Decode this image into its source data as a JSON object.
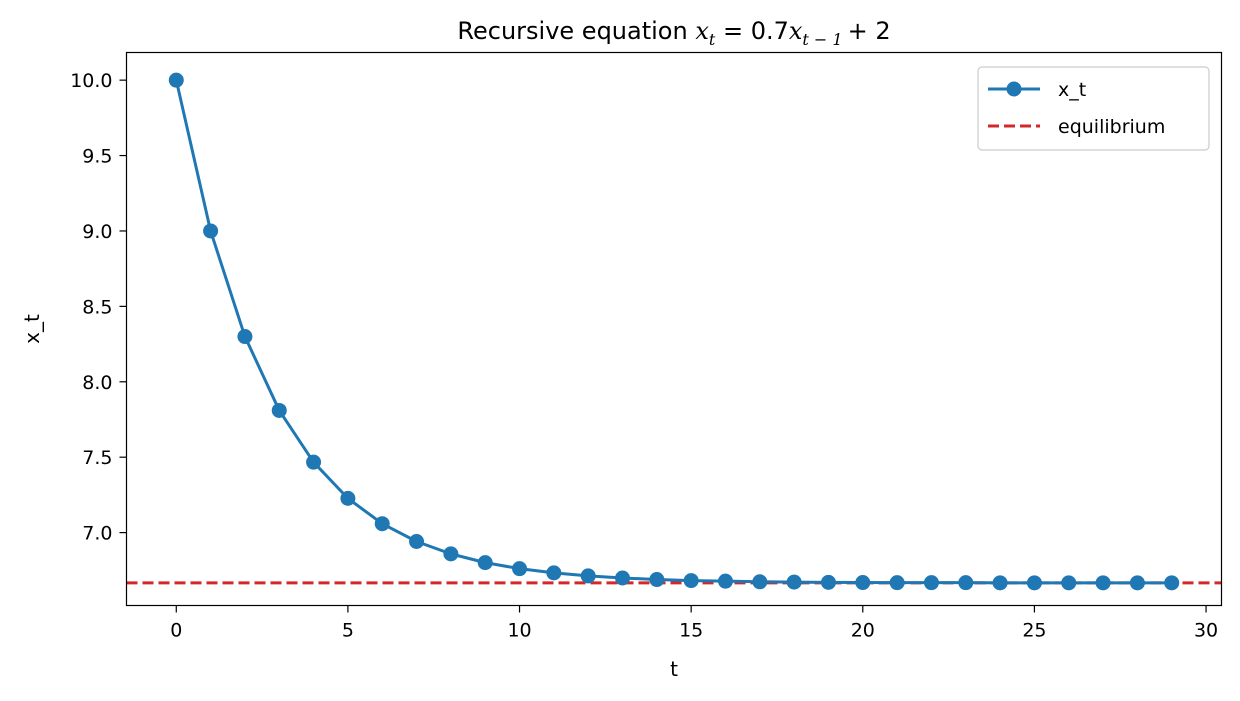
{
  "chart_data": {
    "type": "line",
    "title": {
      "prefix": "Recursive equation ",
      "math": {
        "lhs_var": "x",
        "lhs_sub": "t",
        "rhs_coef": "0.7",
        "rhs_var": "x",
        "rhs_sub": "t − 1",
        "rhs_tail": "+ 2"
      }
    },
    "xlabel": "t",
    "ylabel": "x_t",
    "xlim": [
      -1.45,
      30.45
    ],
    "ylim": [
      6.5167,
      10.1833
    ],
    "x_ticks": [
      0,
      5,
      10,
      15,
      20,
      25,
      30
    ],
    "y_ticks": [
      7.0,
      7.5,
      8.0,
      8.5,
      9.0,
      9.5,
      10.0
    ],
    "grid": false,
    "legend_position": "top-right",
    "series": [
      {
        "name": "x_t",
        "color": "#1f77b4",
        "style": "solid",
        "marker": "circle",
        "x": [
          0,
          1,
          2,
          3,
          4,
          5,
          6,
          7,
          8,
          9,
          10,
          11,
          12,
          13,
          14,
          15,
          16,
          17,
          18,
          19,
          20,
          21,
          22,
          23,
          24,
          25,
          26,
          27,
          28,
          29
        ],
        "values": [
          10.0,
          9.0,
          8.3,
          7.81,
          7.467,
          7.227,
          7.059,
          6.941,
          6.859,
          6.801,
          6.761,
          6.733,
          6.713,
          6.699,
          6.689,
          6.682,
          6.678,
          6.674,
          6.672,
          6.67,
          6.669,
          6.668,
          6.668,
          6.668,
          6.667,
          6.667,
          6.667,
          6.667,
          6.667,
          6.667
        ]
      },
      {
        "name": "equilibrium",
        "color": "#d62728",
        "style": "dashed",
        "hline": 6.6667
      }
    ]
  }
}
